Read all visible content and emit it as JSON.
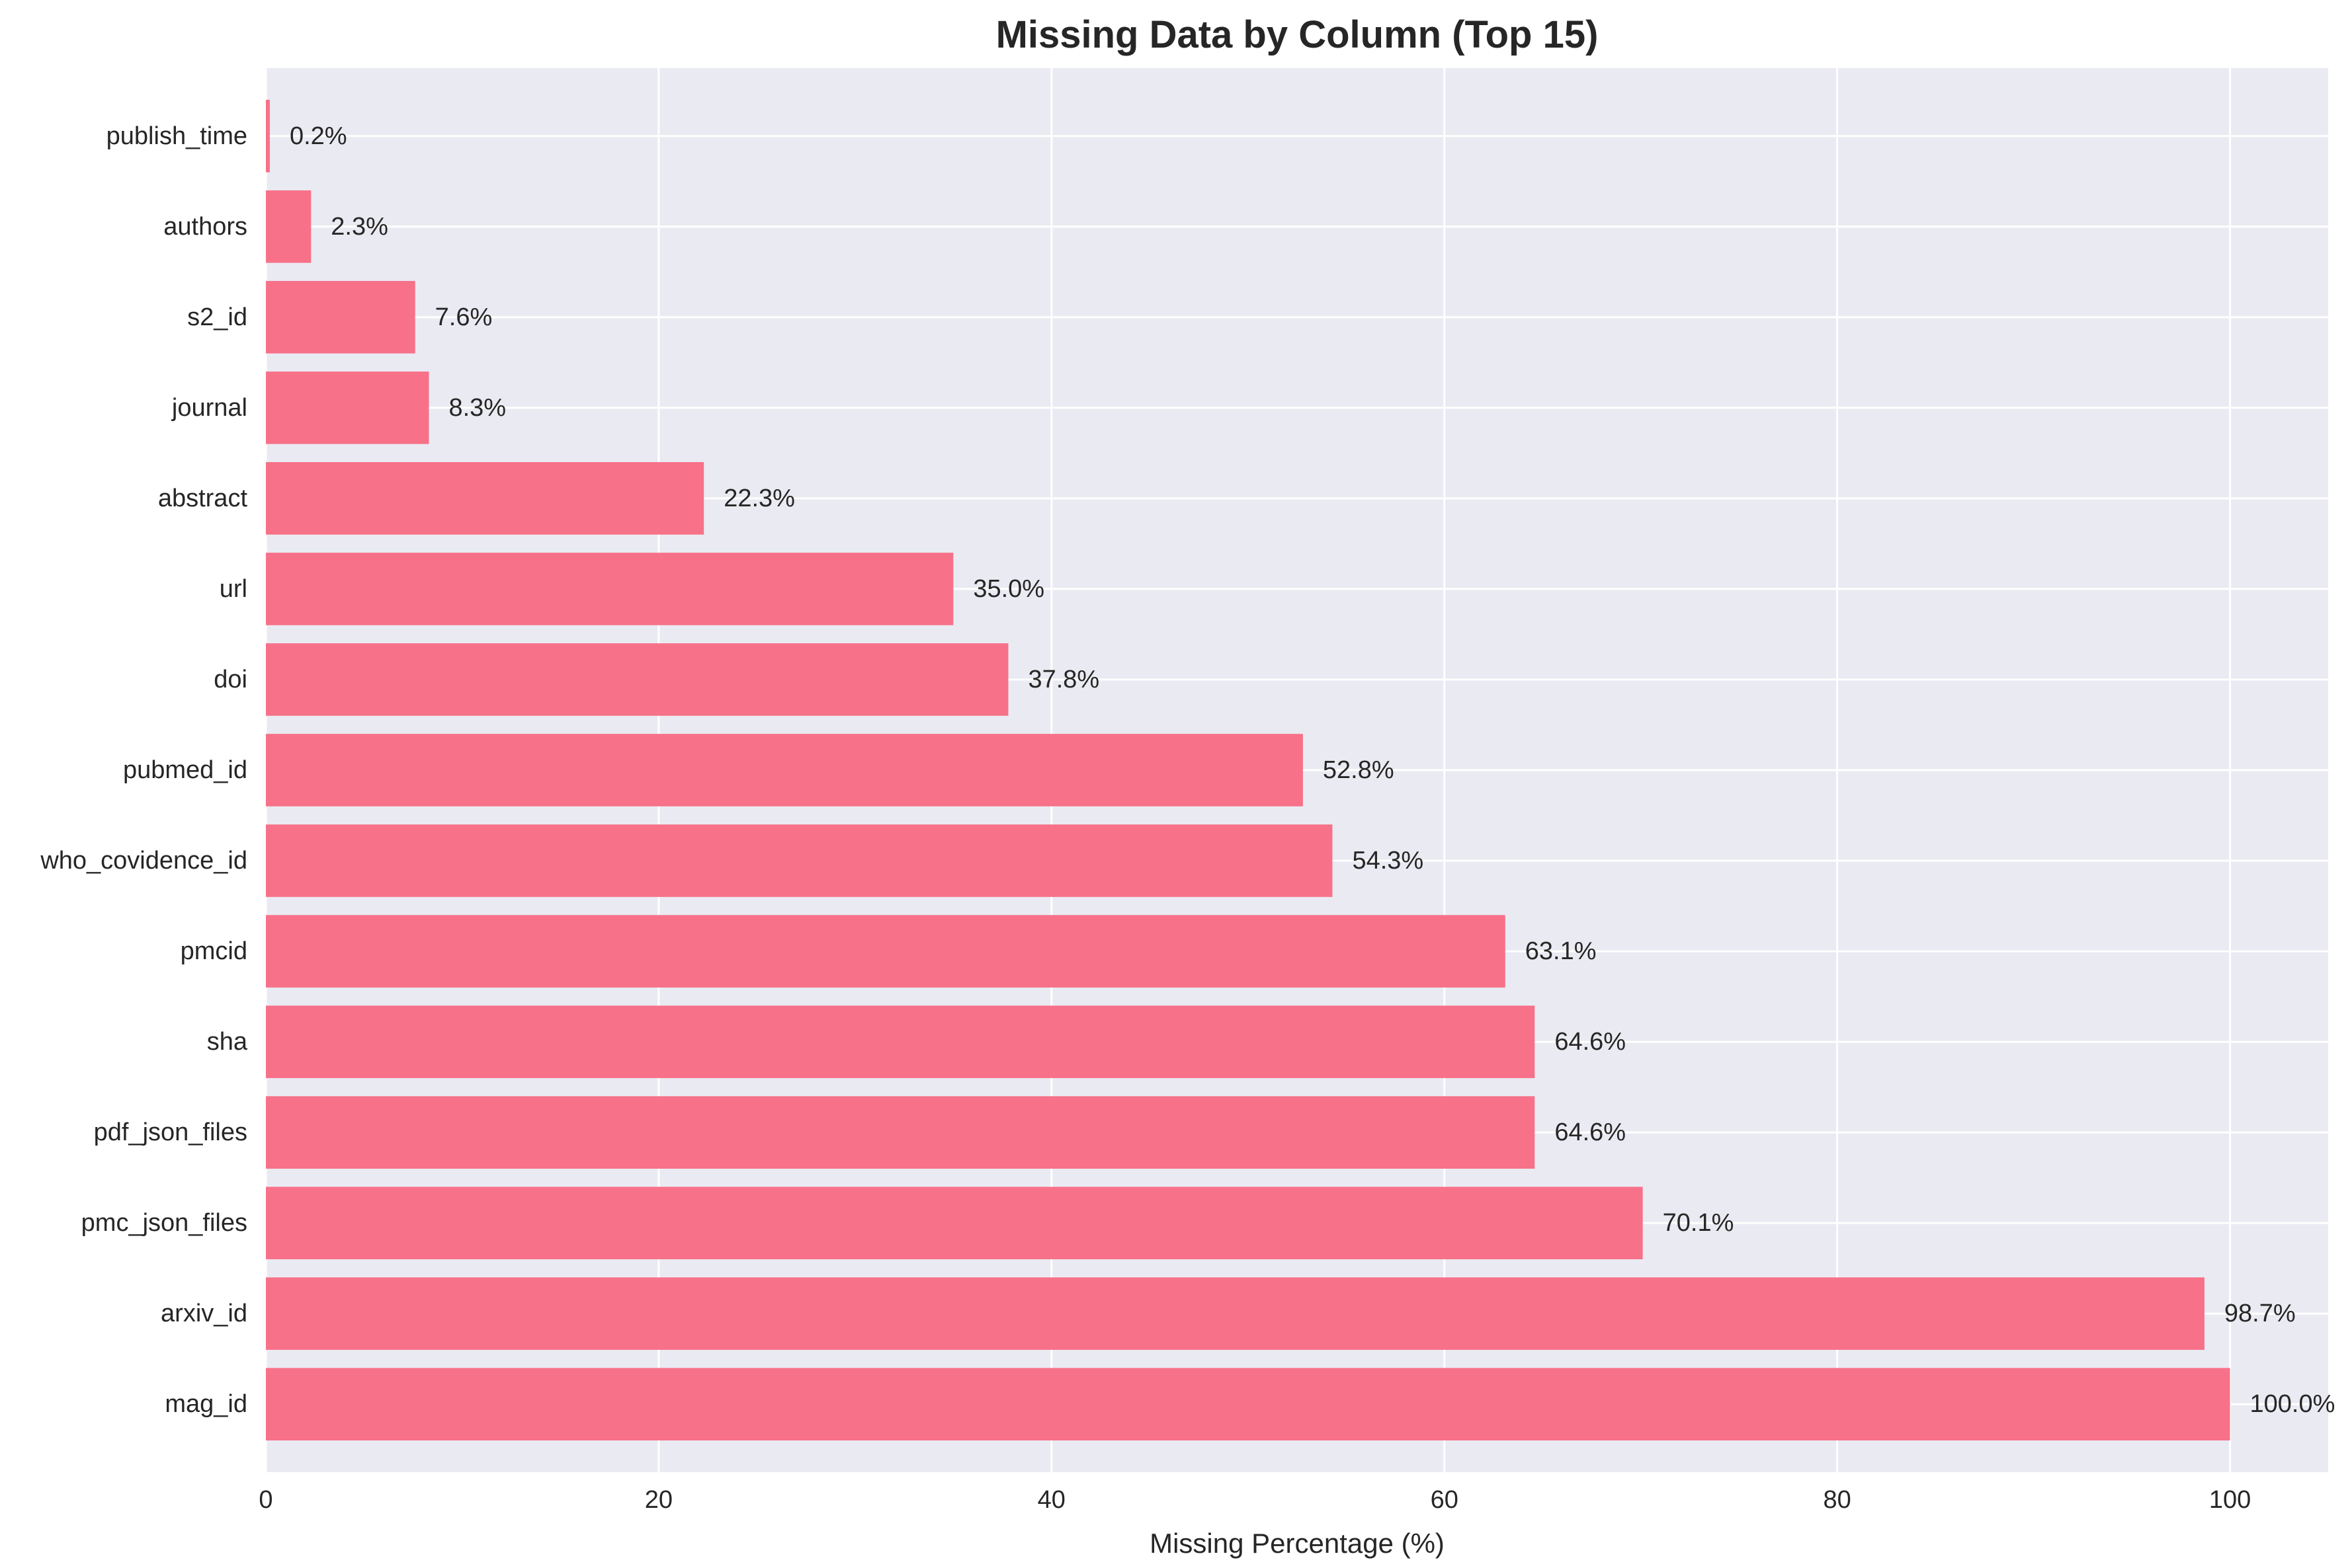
{
  "chart_data": {
    "type": "bar",
    "orientation": "horizontal",
    "title": "Missing Data by Column (Top 15)",
    "xlabel": "Missing Percentage (%)",
    "ylabel": "",
    "xlim": [
      0,
      105
    ],
    "xticks": [
      0,
      20,
      40,
      60,
      80,
      100
    ],
    "grid": true,
    "categories": [
      "mag_id",
      "arxiv_id",
      "pmc_json_files",
      "pdf_json_files",
      "sha",
      "pmcid",
      "who_covidence_id",
      "pubmed_id",
      "doi",
      "url",
      "abstract",
      "journal",
      "s2_id",
      "authors",
      "publish_time"
    ],
    "values": [
      100.0,
      98.7,
      70.1,
      64.6,
      64.6,
      63.1,
      54.3,
      52.8,
      37.8,
      35.0,
      22.3,
      8.3,
      7.6,
      2.3,
      0.2
    ],
    "data_labels": [
      "100.0%",
      "98.7%",
      "70.1%",
      "64.6%",
      "64.6%",
      "63.1%",
      "54.3%",
      "52.8%",
      "37.8%",
      "35.0%",
      "22.3%",
      "8.3%",
      "7.6%",
      "2.3%",
      "0.2%"
    ],
    "colors": {
      "bar": "#f77189",
      "background": "#eaeaf2",
      "grid": "#ffffff"
    }
  }
}
